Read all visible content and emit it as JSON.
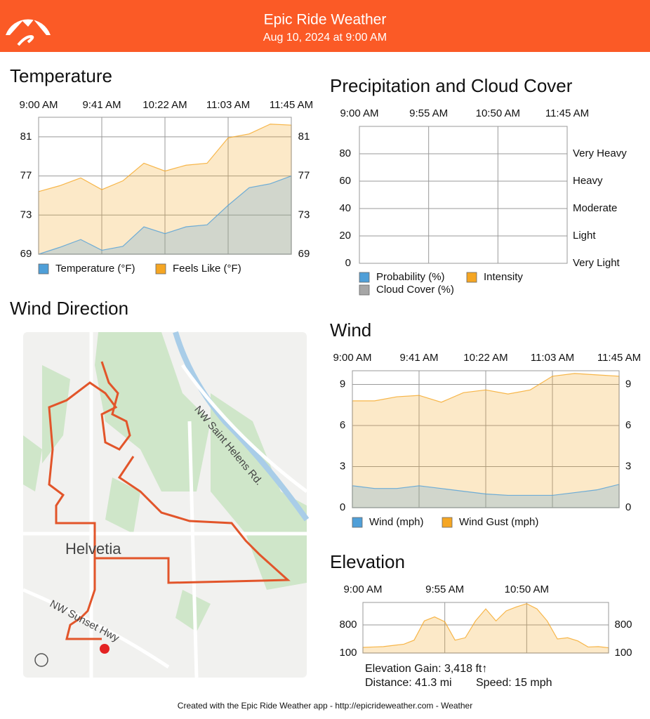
{
  "header": {
    "title": "Epic Ride Weather",
    "subtitle": "Aug 10, 2024 at 9:00 AM"
  },
  "chart_data": [
    {
      "type": "area",
      "title": "Temperature",
      "xticks": [
        "9:00 AM",
        "9:41 AM",
        "10:22 AM",
        "11:03 AM",
        "11:45 AM"
      ],
      "ylim": [
        69,
        83
      ],
      "yticks": [
        69,
        73,
        77,
        81
      ],
      "grid": true,
      "series": [
        {
          "name": "Temperature (°F)",
          "color": "#4f9fd8",
          "values": [
            69.0,
            69.7,
            70.5,
            69.4,
            69.8,
            71.8,
            71.1,
            71.8,
            72.0,
            74.0,
            75.8,
            76.2,
            77.0
          ]
        },
        {
          "name": "Feels Like (°F)",
          "color": "#f5a623",
          "values": [
            75.4,
            76.0,
            76.8,
            75.6,
            76.5,
            78.3,
            77.5,
            78.1,
            78.3,
            80.9,
            81.3,
            82.3,
            82.2
          ]
        }
      ]
    },
    {
      "type": "area",
      "title": "Precipitation and Cloud Cover",
      "xticks": [
        "9:00 AM",
        "9:55 AM",
        "10:50 AM",
        "11:45 AM"
      ],
      "ylim": [
        0,
        100
      ],
      "yticks": [
        0,
        20,
        40,
        60,
        80
      ],
      "grid": true,
      "y2lim": [
        0,
        5
      ],
      "y2ticks": [
        {
          "value": 0,
          "label": "Very Light"
        },
        {
          "value": 1,
          "label": "Light"
        },
        {
          "value": 2,
          "label": "Moderate"
        },
        {
          "value": 3,
          "label": "Heavy"
        },
        {
          "value": 4,
          "label": "Very Heavy"
        }
      ],
      "series": [
        {
          "name": "Probability (%)",
          "color": "#4f9fd8"
        },
        {
          "name": "Intensity",
          "color": "#f5a623",
          "axis": "y2"
        },
        {
          "name": "Cloud Cover (%)",
          "color": "#a6a6a6"
        }
      ]
    },
    {
      "type": "area",
      "title": "Wind",
      "xticks": [
        "9:00 AM",
        "9:41 AM",
        "10:22 AM",
        "11:03 AM",
        "11:45 AM"
      ],
      "ylim": [
        0,
        10
      ],
      "yticks": [
        0,
        3,
        6,
        9
      ],
      "grid": true,
      "series": [
        {
          "name": "Wind (mph)",
          "color": "#4f9fd8",
          "values": [
            1.6,
            1.4,
            1.4,
            1.6,
            1.4,
            1.2,
            1.0,
            0.9,
            0.9,
            0.9,
            1.1,
            1.3,
            1.7
          ]
        },
        {
          "name": "Wind Gust (mph)",
          "color": "#f5a623",
          "values": [
            7.8,
            7.8,
            8.1,
            8.2,
            7.7,
            8.4,
            8.6,
            8.3,
            8.6,
            9.6,
            9.8,
            9.7,
            9.6
          ]
        }
      ]
    },
    {
      "type": "area",
      "title": "Elevation",
      "xticks": [
        "9:00 AM",
        "9:55 AM",
        "10:50 AM"
      ],
      "ylim": [
        100,
        1360
      ],
      "yticks": [
        100,
        800
      ],
      "grid": true,
      "color": "#f5a623",
      "values": [
        240,
        250,
        260,
        290,
        320,
        420,
        900,
        1000,
        880,
        420,
        480,
        900,
        1200,
        900,
        1150,
        1250,
        1330,
        1200,
        900,
        450,
        480,
        400,
        250,
        260,
        230
      ],
      "notes": [
        "Elevation Gain: 3,418 ft↑",
        "Distance: 41.3 mi",
        "Speed: 15 mph"
      ]
    }
  ],
  "map": {
    "title": "Wind Direction",
    "labels": [
      "Helvetia",
      "NW Saint Helens Rd.",
      "NW Sunset Hwy"
    ]
  },
  "footer": "Created with the Epic Ride Weather app - http://epicrideweather.com - Weather"
}
